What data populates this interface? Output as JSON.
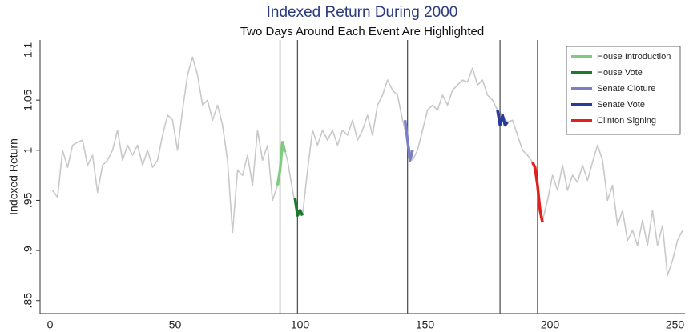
{
  "chart_data": {
    "type": "line",
    "title": "Indexed Return During 2000",
    "subtitle": "Two Days Around Each Event Are Highlighted",
    "y_label": "Indexed Return",
    "xlim": [
      -4,
      254
    ],
    "ylim": [
      0.837,
      1.11
    ],
    "xticks": [
      0,
      50,
      100,
      150,
      200,
      250
    ],
    "yticks": [
      {
        "value": 0.85,
        "label": ".85"
      },
      {
        "value": 0.9,
        "label": ".9"
      },
      {
        "value": 0.95,
        "label": ".95"
      },
      1,
      1.05,
      1.1
    ],
    "legend": "top-right",
    "event_lines": [
      92,
      99,
      143,
      180,
      195
    ],
    "event_line_color": "#555555",
    "base": {
      "color": "#c8c8c8",
      "x": [
        1,
        3,
        5,
        7,
        9,
        11,
        13,
        15,
        17,
        19,
        21,
        23,
        25,
        27,
        29,
        31,
        33,
        35,
        37,
        39,
        41,
        43,
        45,
        47,
        49,
        51,
        53,
        55,
        57,
        59,
        61,
        63,
        65,
        67,
        69,
        71,
        73,
        75,
        77,
        79,
        81,
        83,
        85,
        87,
        89,
        91,
        93,
        95,
        97,
        99,
        101,
        103,
        105,
        107,
        109,
        111,
        113,
        115,
        117,
        119,
        121,
        123,
        125,
        127,
        129,
        131,
        133,
        135,
        137,
        139,
        141,
        143,
        145,
        147,
        149,
        151,
        153,
        155,
        157,
        159,
        161,
        163,
        165,
        167,
        169,
        171,
        173,
        175,
        177,
        179,
        181,
        183,
        185,
        187,
        189,
        191,
        193,
        195,
        197,
        199,
        201,
        203,
        205,
        207,
        209,
        211,
        213,
        215,
        217,
        219,
        221,
        223,
        225,
        227,
        229,
        231,
        233,
        235,
        237,
        239,
        241,
        243,
        245,
        247,
        249,
        251,
        253
      ],
      "values": [
        0.96,
        0.953,
        1.0,
        0.983,
        1.005,
        1.008,
        1.01,
        0.985,
        0.995,
        0.958,
        0.985,
        0.99,
        1.0,
        1.02,
        0.99,
        1.005,
        0.995,
        1.005,
        0.985,
        1.0,
        0.983,
        0.99,
        1.015,
        1.035,
        1.03,
        1.0,
        1.04,
        1.075,
        1.093,
        1.075,
        1.045,
        1.05,
        1.03,
        1.045,
        1.025,
        0.99,
        0.918,
        0.98,
        0.975,
        0.995,
        0.965,
        1.02,
        0.99,
        1.005,
        0.95,
        0.965,
        1.008,
        0.99,
        0.96,
        0.935,
        0.935,
        0.98,
        1.02,
        1.005,
        1.02,
        1.01,
        1.02,
        1.005,
        1.02,
        1.015,
        1.03,
        1.01,
        1.02,
        1.035,
        1.015,
        1.045,
        1.055,
        1.07,
        1.06,
        1.055,
        1.03,
        1.01,
        0.99,
        1.0,
        1.02,
        1.04,
        1.045,
        1.04,
        1.055,
        1.045,
        1.06,
        1.065,
        1.07,
        1.068,
        1.082,
        1.065,
        1.07,
        1.055,
        1.05,
        1.04,
        1.035,
        1.028,
        1.03,
        1.015,
        1.0,
        0.995,
        0.988,
        0.965,
        0.93,
        0.95,
        0.975,
        0.96,
        0.985,
        0.96,
        0.975,
        0.968,
        0.985,
        0.97,
        0.988,
        1.005,
        0.99,
        0.95,
        0.965,
        0.925,
        0.94,
        0.91,
        0.92,
        0.905,
        0.93,
        0.905,
        0.94,
        0.905,
        0.925,
        0.875,
        0.89,
        0.91,
        0.92
      ]
    },
    "series": [
      {
        "name": "House Introduction",
        "color": "#7fcc7f",
        "x": [
          91,
          92,
          93,
          94
        ],
        "values": [
          0.965,
          0.98,
          1.008,
          0.998
        ]
      },
      {
        "name": "House Vote",
        "color": "#1a7a2e",
        "x": [
          98,
          99,
          100,
          101
        ],
        "values": [
          0.952,
          0.935,
          0.94,
          0.935
        ]
      },
      {
        "name": "Senate Cloture",
        "color": "#7a80c8",
        "x": [
          142,
          143,
          144,
          145
        ],
        "values": [
          1.03,
          1.01,
          0.99,
          1.0
        ]
      },
      {
        "name": "Senate Vote",
        "color": "#2a3a9a",
        "x": [
          179,
          180,
          181,
          182,
          183
        ],
        "values": [
          1.04,
          1.025,
          1.035,
          1.025,
          1.028
        ]
      },
      {
        "name": "Clinton Signing",
        "color": "#e0201c",
        "x": [
          193,
          194,
          195,
          196,
          197
        ],
        "values": [
          0.988,
          0.983,
          0.965,
          0.94,
          0.928
        ]
      }
    ]
  }
}
